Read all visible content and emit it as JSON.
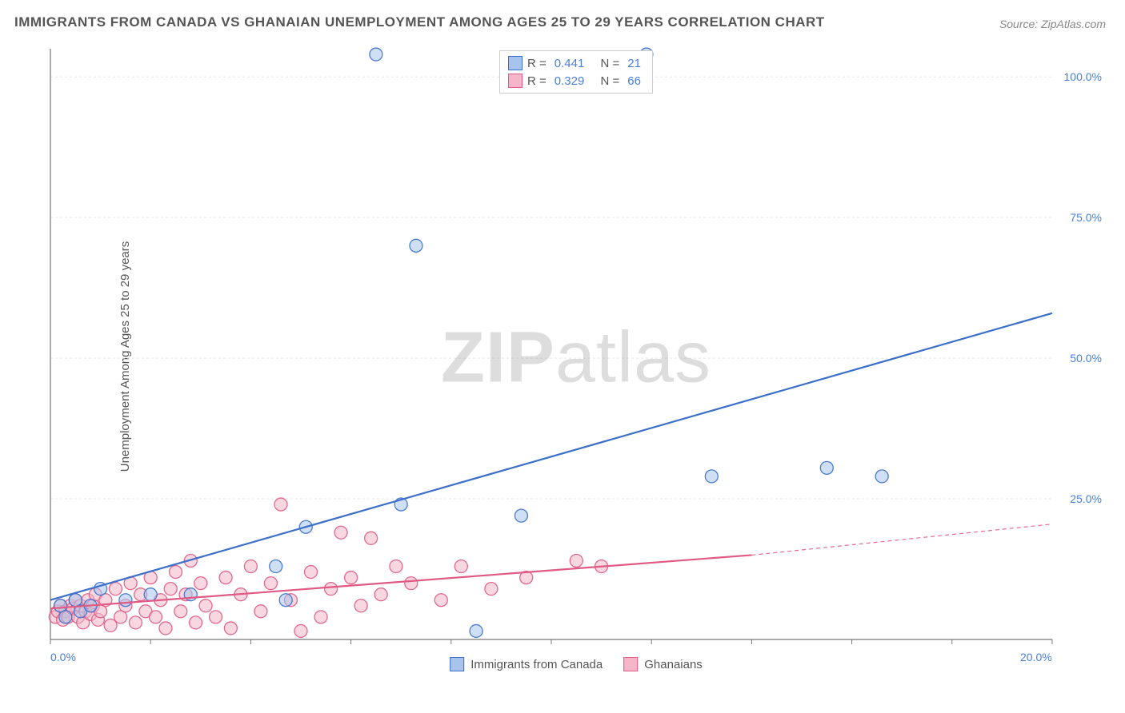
{
  "title": "IMMIGRANTS FROM CANADA VS GHANAIAN UNEMPLOYMENT AMONG AGES 25 TO 29 YEARS CORRELATION CHART",
  "source": "Source: ZipAtlas.com",
  "y_axis_label": "Unemployment Among Ages 25 to 29 years",
  "watermark_a": "ZIP",
  "watermark_b": "atlas",
  "chart": {
    "type": "scatter",
    "x_range": [
      0,
      20
    ],
    "y_range": [
      0,
      105
    ],
    "x_ticks": [
      0,
      20
    ],
    "x_tick_labels": [
      "0.0%",
      "20.0%"
    ],
    "y_ticks": [
      25,
      50,
      75,
      100
    ],
    "y_tick_labels": [
      "25.0%",
      "50.0%",
      "75.0%",
      "100.0%"
    ],
    "x_minor_count": 10,
    "grid_color": "#e5e5e5",
    "axis_color": "#777777",
    "background": "#ffffff",
    "tick_label_color": "#4a7fd8",
    "marker_radius": 8,
    "marker_opacity": 0.55,
    "line_width": 2.2,
    "series": [
      {
        "name": "Immigrants from Canada",
        "color_stroke": "#3b6fc9",
        "color_fill": "#a8c4ec",
        "R": "0.441",
        "N": "21",
        "trend": {
          "x1": 0,
          "y1": 7,
          "x2": 20,
          "y2": 58
        },
        "points": [
          [
            0.2,
            6
          ],
          [
            0.3,
            4
          ],
          [
            0.5,
            7
          ],
          [
            0.6,
            5
          ],
          [
            0.8,
            6
          ],
          [
            1.0,
            9
          ],
          [
            1.5,
            7
          ],
          [
            2.0,
            8
          ],
          [
            2.8,
            8
          ],
          [
            4.5,
            13
          ],
          [
            4.7,
            7
          ],
          [
            5.1,
            20
          ],
          [
            6.5,
            104
          ],
          [
            7.0,
            24
          ],
          [
            7.3,
            70
          ],
          [
            8.5,
            1.5
          ],
          [
            9.4,
            22
          ],
          [
            11.9,
            104
          ],
          [
            13.2,
            29
          ],
          [
            15.5,
            30.5
          ],
          [
            16.6,
            29
          ]
        ]
      },
      {
        "name": "Ghanaians",
        "color_stroke": "#e05a84",
        "color_fill": "#f4b6c8",
        "R": "0.329",
        "N": "66",
        "trend": {
          "x1": 0,
          "y1": 5.5,
          "x2": 14,
          "y2": 15
        },
        "trend_ext": {
          "x1": 14,
          "y1": 15,
          "x2": 20,
          "y2": 20.5
        },
        "points": [
          [
            0.1,
            4
          ],
          [
            0.15,
            5
          ],
          [
            0.2,
            6
          ],
          [
            0.25,
            3.5
          ],
          [
            0.3,
            5
          ],
          [
            0.35,
            4
          ],
          [
            0.4,
            6
          ],
          [
            0.45,
            5.5
          ],
          [
            0.5,
            7
          ],
          [
            0.55,
            4
          ],
          [
            0.6,
            6
          ],
          [
            0.65,
            3
          ],
          [
            0.7,
            5
          ],
          [
            0.75,
            7
          ],
          [
            0.8,
            4.5
          ],
          [
            0.85,
            6
          ],
          [
            0.9,
            8
          ],
          [
            0.95,
            3.5
          ],
          [
            1.0,
            5
          ],
          [
            1.1,
            7
          ],
          [
            1.2,
            2.5
          ],
          [
            1.3,
            9
          ],
          [
            1.4,
            4
          ],
          [
            1.5,
            6
          ],
          [
            1.6,
            10
          ],
          [
            1.7,
            3
          ],
          [
            1.8,
            8
          ],
          [
            1.9,
            5
          ],
          [
            2.0,
            11
          ],
          [
            2.1,
            4
          ],
          [
            2.2,
            7
          ],
          [
            2.3,
            2
          ],
          [
            2.4,
            9
          ],
          [
            2.5,
            12
          ],
          [
            2.6,
            5
          ],
          [
            2.7,
            8
          ],
          [
            2.8,
            14
          ],
          [
            2.9,
            3
          ],
          [
            3.0,
            10
          ],
          [
            3.1,
            6
          ],
          [
            3.3,
            4
          ],
          [
            3.5,
            11
          ],
          [
            3.6,
            2
          ],
          [
            3.8,
            8
          ],
          [
            4.0,
            13
          ],
          [
            4.2,
            5
          ],
          [
            4.4,
            10
          ],
          [
            4.6,
            24
          ],
          [
            4.8,
            7
          ],
          [
            5.0,
            1.5
          ],
          [
            5.2,
            12
          ],
          [
            5.4,
            4
          ],
          [
            5.6,
            9
          ],
          [
            5.8,
            19
          ],
          [
            6.0,
            11
          ],
          [
            6.2,
            6
          ],
          [
            6.4,
            18
          ],
          [
            6.6,
            8
          ],
          [
            6.9,
            13
          ],
          [
            7.2,
            10
          ],
          [
            7.8,
            7
          ],
          [
            8.2,
            13
          ],
          [
            8.8,
            9
          ],
          [
            9.5,
            11
          ],
          [
            10.5,
            14
          ],
          [
            11.0,
            13
          ]
        ]
      }
    ]
  },
  "legend_bottom": [
    "Immigrants from Canada",
    "Ghanaians"
  ],
  "legend_top_labels": {
    "R": "R =",
    "N": "N ="
  }
}
